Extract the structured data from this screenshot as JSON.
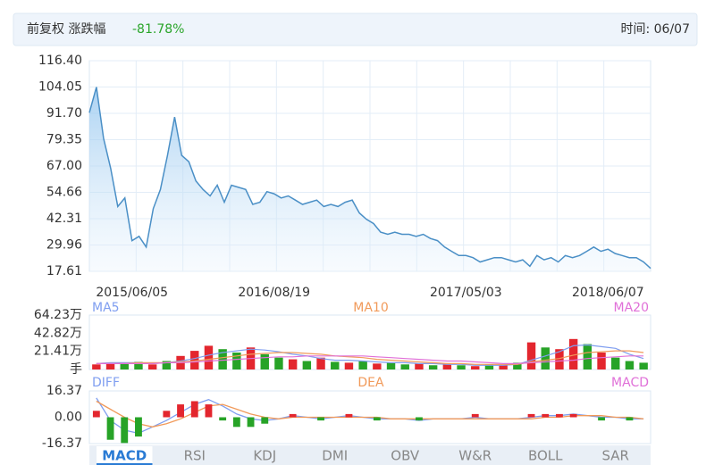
{
  "header": {
    "title": "前复权 涨跌幅",
    "change": "-81.78%",
    "time": "时间: 06/07"
  },
  "chart_data": [
    {
      "type": "area",
      "color": "#4a8fc6",
      "grid": true,
      "ylim": [
        17.61,
        116.4
      ],
      "yticks": [
        {
          "value": 116.4,
          "label": "116.40"
        },
        104.05,
        {
          "value": 91.7,
          "label": "91.70"
        },
        79.35,
        {
          "value": 67,
          "label": "67.00"
        },
        54.66,
        42.31,
        29.96,
        17.61
      ],
      "categories": [
        null,
        null,
        null,
        null,
        null,
        null,
        "2015/06/05",
        null,
        null,
        null,
        null,
        null,
        null,
        null,
        null,
        null,
        null,
        null,
        null,
        null,
        null,
        null,
        null,
        null,
        null,
        null,
        "2016/08/19",
        null,
        null,
        null,
        null,
        null,
        null,
        null,
        null,
        null,
        null,
        null,
        null,
        null,
        null,
        null,
        null,
        null,
        null,
        null,
        null,
        null,
        null,
        null,
        null,
        null,
        null,
        "2017/05/03",
        null,
        null,
        null,
        null,
        null,
        null,
        null,
        null,
        null,
        null,
        null,
        null,
        null,
        null,
        null,
        null,
        null,
        null,
        null,
        "2018/06/07",
        null,
        null,
        null,
        null,
        null,
        null
      ],
      "values": [
        92,
        104,
        80,
        66,
        48,
        52,
        32,
        34,
        29,
        47,
        56,
        72,
        90,
        72,
        69,
        60,
        56,
        53,
        58,
        50,
        58,
        57,
        56,
        49,
        50,
        55,
        54,
        52,
        53,
        51,
        49,
        50,
        51,
        48,
        49,
        48,
        50,
        51,
        45,
        42,
        40,
        36,
        35,
        36,
        35,
        35,
        34,
        35,
        33,
        32,
        29,
        27,
        25,
        25,
        24,
        22,
        23,
        24,
        24,
        23,
        22,
        23,
        20,
        25,
        23,
        24,
        22,
        25,
        24,
        25,
        27,
        29,
        27,
        28,
        26,
        25,
        24,
        24,
        22,
        19
      ]
    },
    {
      "type": "volume",
      "ylim": [
        0,
        64.23
      ],
      "yticks": [
        {
          "value": 64.23,
          "label": "64.23万"
        },
        {
          "value": 42.82,
          "label": "42.82万"
        },
        {
          "value": 21.41,
          "label": "21.41万"
        },
        {
          "value": 0,
          "label": "手"
        }
      ],
      "values": [
        6,
        8,
        7,
        9,
        6,
        10,
        16,
        22,
        28,
        24,
        20,
        26,
        18,
        14,
        12,
        10,
        14,
        9,
        8,
        10,
        7,
        8,
        6,
        7,
        5,
        6,
        5,
        4,
        6,
        5,
        8,
        32,
        26,
        24,
        36,
        30,
        20,
        14,
        10,
        8
      ],
      "bar_colors": [
        "#e3262e",
        "#e3262e",
        "#27a327",
        "#27a327",
        "#e3262e",
        "#27a327",
        "#e3262e",
        "#e3262e",
        "#e3262e",
        "#27a327",
        "#27a327",
        "#e3262e",
        "#27a327",
        "#27a327",
        "#e3262e",
        "#27a327",
        "#e3262e",
        "#27a327",
        "#e3262e",
        "#27a327",
        "#e3262e",
        "#27a327",
        "#27a327",
        "#e3262e",
        "#27a327",
        "#e3262e",
        "#27a327",
        "#e3262e",
        "#27a327",
        "#e3262e",
        "#27a327",
        "#e3262e",
        "#27a327",
        "#e3262e",
        "#e3262e",
        "#27a327",
        "#e3262e",
        "#27a327",
        "#27a327",
        "#27a327"
      ],
      "series": [
        {
          "name": "MA5",
          "color": "#7f9ef0",
          "values": [
            7,
            8,
            8,
            8,
            7,
            8,
            10,
            13,
            17,
            20,
            22,
            24,
            23,
            21,
            18,
            16,
            13,
            11,
            11,
            10,
            9,
            8,
            8,
            7,
            7,
            6,
            6,
            5,
            5,
            5,
            6,
            11,
            16,
            21,
            28,
            29,
            27,
            25,
            18,
            13
          ]
        },
        {
          "name": "MA10",
          "color": "#f19a5a",
          "values": [
            7,
            7,
            7,
            8,
            8,
            8,
            9,
            10,
            12,
            14,
            16,
            18,
            19,
            20,
            20,
            19,
            18,
            16,
            15,
            14,
            12,
            11,
            10,
            9,
            8,
            7,
            7,
            6,
            6,
            6,
            6,
            9,
            11,
            13,
            17,
            20,
            21,
            22,
            22,
            20
          ]
        },
        {
          "name": "MA20",
          "color": "#e070d8",
          "values": [
            7,
            7,
            7,
            7,
            7,
            8,
            8,
            9,
            10,
            11,
            12,
            13,
            14,
            15,
            15,
            16,
            16,
            16,
            16,
            16,
            15,
            14,
            13,
            12,
            11,
            10,
            10,
            9,
            8,
            7,
            7,
            8,
            9,
            10,
            11,
            13,
            14,
            15,
            16,
            16
          ]
        }
      ]
    },
    {
      "type": "macd",
      "ylim": [
        -16.37,
        16.37
      ],
      "yticks": [
        16.37,
        {
          "value": 0,
          "label": "0.00"
        },
        -16.37
      ],
      "up_color": "#e3262e",
      "down_color": "#27a327",
      "series": [
        {
          "name": "DIFF",
          "color": "#7f9ef0",
          "values": [
            12,
            -2,
            -8,
            -10,
            -6,
            -2,
            3,
            8,
            11,
            7,
            2,
            -1,
            -2,
            -1,
            1,
            0,
            -1,
            0,
            1,
            0,
            -1,
            -1,
            -1,
            -2,
            -1,
            -1,
            -1,
            0,
            -1,
            -1,
            -1,
            0,
            1,
            1,
            2,
            1,
            0,
            0,
            -1,
            -1
          ]
        },
        {
          "name": "DEA",
          "color": "#f19a5a",
          "values": [
            10,
            5,
            0,
            -4,
            -6,
            -4,
            -1,
            3,
            7,
            8,
            5,
            2,
            0,
            -1,
            0,
            0,
            0,
            0,
            0,
            0,
            0,
            -1,
            -1,
            -1,
            -1,
            -1,
            -1,
            -1,
            -1,
            -1,
            -1,
            -1,
            0,
            0,
            1,
            1,
            1,
            0,
            0,
            -1
          ]
        },
        {
          "name": "MACD",
          "color": "#e070d8",
          "style": "bar",
          "values": [
            4,
            -14,
            -16,
            -12,
            0,
            4,
            8,
            10,
            8,
            -2,
            -6,
            -6,
            -4,
            0,
            2,
            0,
            -2,
            0,
            2,
            0,
            -2,
            0,
            0,
            -2,
            0,
            0,
            0,
            2,
            0,
            0,
            0,
            2,
            2,
            2,
            2,
            0,
            -2,
            0,
            -2,
            0
          ]
        }
      ]
    }
  ],
  "tabs": {
    "items": [
      "MACD",
      "RSI",
      "KDJ",
      "DMI",
      "OBV",
      "W&R",
      "BOLL",
      "SAR"
    ],
    "active": 0
  }
}
